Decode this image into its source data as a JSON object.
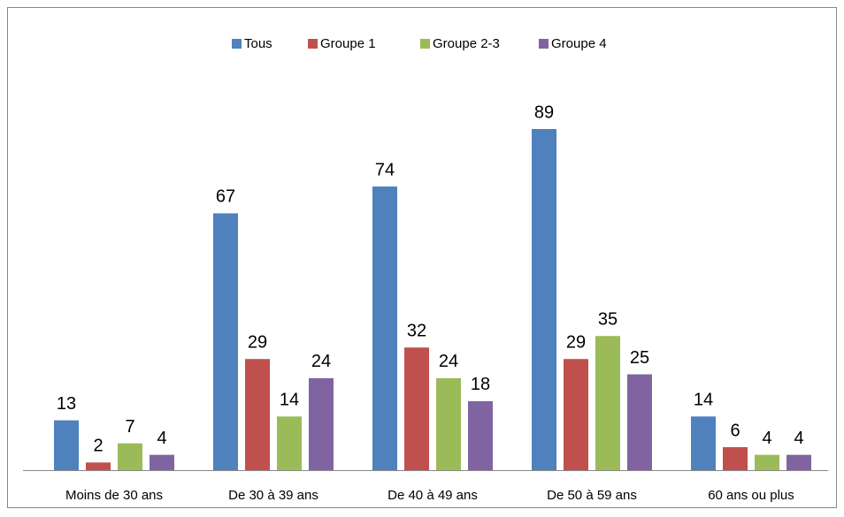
{
  "chart_data": {
    "type": "bar",
    "categories": [
      "Moins de 30 ans",
      "De 30 à 39 ans",
      "De 40 à 49 ans",
      "De 50 à 59 ans",
      "60 ans ou plus"
    ],
    "series": [
      {
        "name": "Tous",
        "color": "#4f81bd",
        "values": [
          13,
          67,
          74,
          89,
          14
        ]
      },
      {
        "name": "Groupe 1",
        "color": "#c0504d",
        "values": [
          2,
          29,
          32,
          29,
          6
        ]
      },
      {
        "name": "Groupe 2-3",
        "color": "#9bbb59",
        "values": [
          7,
          14,
          24,
          35,
          4
        ]
      },
      {
        "name": "Groupe 4",
        "color": "#8064a2",
        "values": [
          4,
          24,
          18,
          25,
          4
        ]
      }
    ],
    "legend": "top"
  }
}
